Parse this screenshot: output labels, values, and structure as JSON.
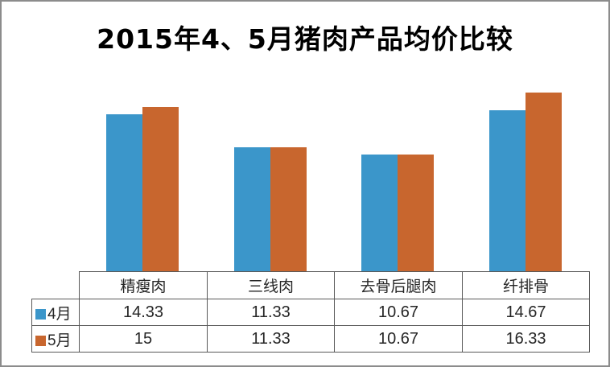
{
  "title": "2015年4、5月猪肉产品均价比较",
  "colors": {
    "april_series": "#3B96CA",
    "may_series": "#C8662E",
    "table_border": "#595959",
    "outer_border": "#8C8C8C",
    "text": "#262626",
    "title_text": "#000000"
  },
  "chart_data": {
    "type": "bar",
    "title": "2015年4、5月猪肉产品均价比较",
    "categories": [
      "精瘦肉",
      "三线肉",
      "去骨后腿肉",
      "纤排骨"
    ],
    "series": [
      {
        "key": "april",
        "name": "4月",
        "color": "#3B96CA",
        "values": [
          14.33,
          11.33,
          10.67,
          14.67
        ]
      },
      {
        "key": "may",
        "name": "5月",
        "color": "#C8662E",
        "values": [
          15,
          11.33,
          10.67,
          16.33
        ]
      }
    ],
    "xlabel": "",
    "ylabel": "",
    "ylim": [
      0,
      18
    ],
    "grid": false,
    "axes_visible": false,
    "legend_position": "table-left"
  },
  "table": {
    "header": [
      "精瘦肉",
      "三线肉",
      "去骨后腿肉",
      "纤排骨"
    ],
    "rows": [
      {
        "label": "4月",
        "values": [
          "14.33",
          "11.33",
          "10.67",
          "14.67"
        ]
      },
      {
        "label": "5月",
        "values": [
          "15",
          "11.33",
          "10.67",
          "16.33"
        ]
      }
    ]
  }
}
